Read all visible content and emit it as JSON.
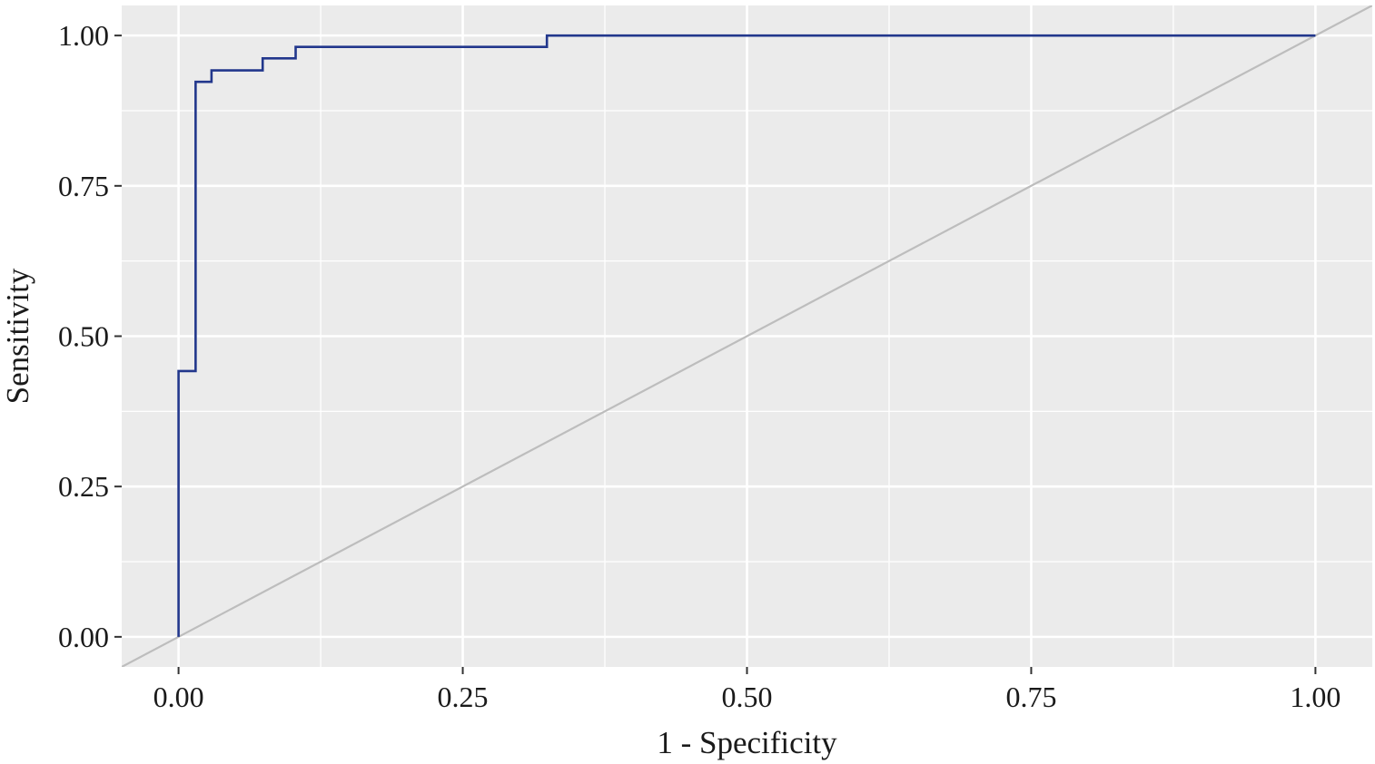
{
  "chart_data": {
    "type": "line",
    "title": "",
    "xlabel": "1 - Specificity",
    "ylabel": "Sensitivity",
    "xlim": [
      -0.05,
      1.05
    ],
    "ylim": [
      -0.05,
      1.05
    ],
    "x_ticks": [
      "0.00",
      "0.25",
      "0.50",
      "0.75",
      "1.00"
    ],
    "y_ticks": [
      "0.00",
      "0.25",
      "0.50",
      "0.75",
      "1.00"
    ],
    "grid": true,
    "background_color": "#ebebeb",
    "series": [
      {
        "style": "step",
        "color": "#22378c",
        "points": [
          [
            0.0,
            0.0
          ],
          [
            0.0,
            0.442
          ],
          [
            0.015,
            0.442
          ],
          [
            0.015,
            0.923
          ],
          [
            0.029,
            0.923
          ],
          [
            0.029,
            0.942
          ],
          [
            0.074,
            0.942
          ],
          [
            0.074,
            0.962
          ],
          [
            0.103,
            0.962
          ],
          [
            0.103,
            0.981
          ],
          [
            0.324,
            0.981
          ],
          [
            0.324,
            1.0
          ],
          [
            1.0,
            1.0
          ]
        ]
      },
      {
        "style": "reference-diagonal",
        "color": "#bdbdbd",
        "points": [
          [
            -0.05,
            -0.05
          ],
          [
            1.05,
            1.05
          ]
        ]
      }
    ]
  }
}
